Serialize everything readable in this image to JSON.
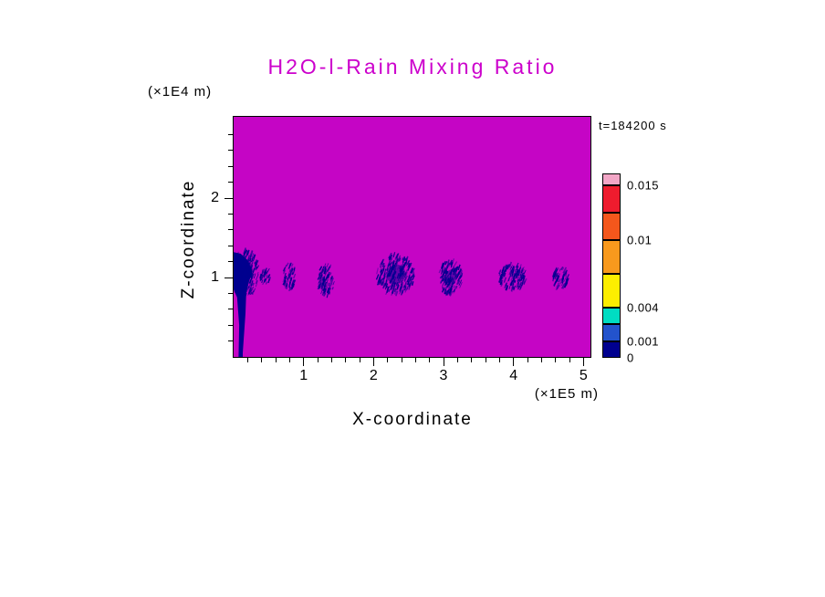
{
  "title": {
    "text": "H2O-l-Rain Mixing Ratio",
    "color": "#cc00cc"
  },
  "time_label": "t=184200 s",
  "axes": {
    "x": {
      "label": "X-coordinate",
      "unit": "(×1E5 m)",
      "ticks": [
        1,
        2,
        3,
        4,
        5
      ]
    },
    "z": {
      "label": "Z-coordinate",
      "unit": "(×1E4 m)",
      "ticks": [
        1,
        2
      ]
    }
  },
  "colorbar": {
    "labels": [
      "0.015",
      "0.01",
      "0.004",
      "0.001",
      "0"
    ],
    "segment_colors": [
      "#f2a6c6",
      "#ee1c2e",
      "#f4571c",
      "#f8991d",
      "#fdee00",
      "#00ddc2",
      "#2353cc",
      "#00008f"
    ]
  },
  "chart_data": {
    "type": "heatmap",
    "title": "H2O-l-Rain Mixing Ratio",
    "xlabel": "X-coordinate (×1E5 m)",
    "ylabel": "Z-coordinate (×1E4 m)",
    "time_label": "t=184200 s",
    "x_range": [
      0,
      5.1
    ],
    "z_range": [
      0,
      3.0
    ],
    "value_levels": [
      0,
      0.001,
      0.004,
      0.01,
      0.015
    ],
    "background_color": "#c505c5",
    "rain_color": "#00008f",
    "background_meaning": "field below lowest contour level (~0, no rain) rendered magenta",
    "rain_cells": [
      {
        "x": 0.16,
        "z": 1.05,
        "rx": 0.2,
        "rz": 0.3,
        "tilt": 110,
        "strokes": 170,
        "core": true
      },
      {
        "x": 0.45,
        "z": 1.0,
        "rx": 0.07,
        "rz": 0.1,
        "tilt": 110,
        "strokes": 25,
        "core": false
      },
      {
        "x": 0.8,
        "z": 1.02,
        "rx": 0.09,
        "rz": 0.17,
        "tilt": 108,
        "strokes": 55,
        "core": false
      },
      {
        "x": 1.33,
        "z": 0.97,
        "rx": 0.12,
        "rz": 0.22,
        "tilt": 112,
        "strokes": 85,
        "core": false
      },
      {
        "x": 2.32,
        "z": 1.04,
        "rx": 0.27,
        "rz": 0.25,
        "tilt": 110,
        "strokes": 230,
        "core": true
      },
      {
        "x": 3.1,
        "z": 1.0,
        "rx": 0.17,
        "rz": 0.21,
        "tilt": 112,
        "strokes": 140,
        "core": true
      },
      {
        "x": 3.98,
        "z": 1.0,
        "rx": 0.2,
        "rz": 0.17,
        "tilt": 110,
        "strokes": 120,
        "core": false
      },
      {
        "x": 4.66,
        "z": 1.0,
        "rx": 0.12,
        "rz": 0.14,
        "tilt": 110,
        "strokes": 60,
        "core": false
      }
    ],
    "surface_plume": {
      "note": "rain shaft reaching the surface at the left edge of the domain",
      "points": [
        [
          0.0,
          1.32
        ],
        [
          0.1,
          1.3
        ],
        [
          0.2,
          1.22
        ],
        [
          0.27,
          1.08
        ],
        [
          0.22,
          0.95
        ],
        [
          0.18,
          0.8
        ],
        [
          0.17,
          0.55
        ],
        [
          0.15,
          0.3
        ],
        [
          0.13,
          0.05
        ],
        [
          0.13,
          0.0
        ],
        [
          0.07,
          0.0
        ],
        [
          0.08,
          0.4
        ],
        [
          0.05,
          0.75
        ],
        [
          0.0,
          0.85
        ]
      ]
    }
  }
}
